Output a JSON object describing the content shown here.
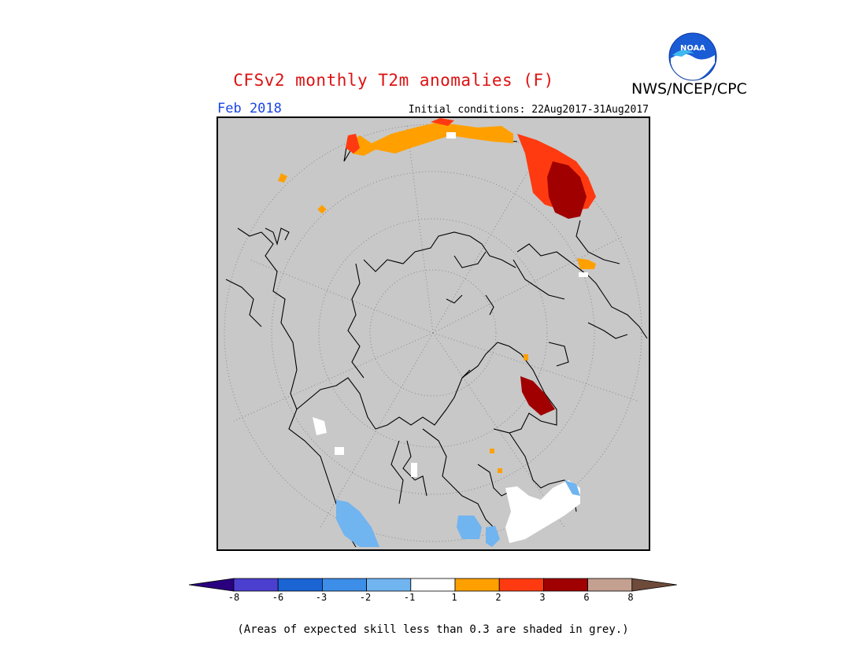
{
  "header": {
    "title": "CFSv2 monthly T2m anomalies (F)",
    "agency": "NWS/NCEP/CPC",
    "logo_text": "NOAA",
    "month": "Feb 2018",
    "initial_conditions": "Initial conditions: 22Aug2017-31Aug2017"
  },
  "legend": {
    "colors": [
      "#2a0080",
      "#4b3fd0",
      "#1a64d4",
      "#3d8ee8",
      "#70b4f0",
      "#ffffff",
      "#ffa000",
      "#ff3a10",
      "#a00000",
      "#c4a090",
      "#6e4a3a"
    ],
    "tick_labels": [
      "-8",
      "-6",
      "-3",
      "-2",
      "-1",
      "1",
      "2",
      "3",
      "6",
      "8"
    ],
    "skill_color": "#c8c8c8"
  },
  "footnote": "(Areas of expected skill less than 0.3 are shaded in grey.)"
}
